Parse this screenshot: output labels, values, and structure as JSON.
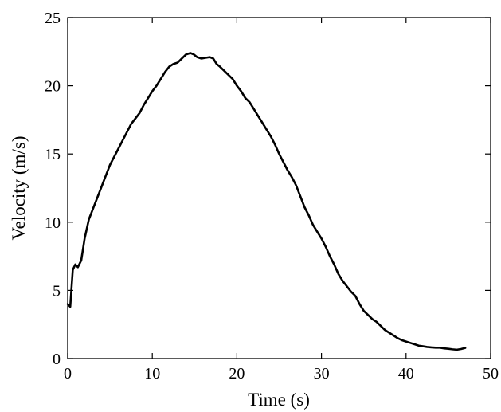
{
  "chart_data": {
    "type": "line",
    "title": "",
    "xlabel": "Time (s)",
    "ylabel": "Velocity (m/s)",
    "xlim": [
      0,
      50
    ],
    "ylim": [
      0,
      25
    ],
    "xticks": [
      0,
      10,
      20,
      30,
      40,
      50
    ],
    "yticks": [
      0,
      5,
      10,
      15,
      20,
      25
    ],
    "xtick_labels": [
      "0",
      "10",
      "20",
      "30",
      "40",
      "50"
    ],
    "ytick_labels": [
      "0",
      "5",
      "10",
      "15",
      "20",
      "25"
    ],
    "grid": false,
    "legend": "none",
    "line_color": "#000000",
    "series": [
      {
        "x": [
          0,
          0.3,
          0.6,
          0.9,
          1.2,
          1.6,
          2.0,
          2.5,
          3.0,
          3.5,
          4.0,
          4.5,
          5.0,
          5.5,
          6.0,
          6.5,
          7.0,
          7.5,
          8.0,
          8.5,
          9.0,
          9.5,
          10.0,
          10.5,
          11.0,
          11.5,
          12.0,
          12.5,
          13.0,
          13.5,
          14.0,
          14.5,
          14.9,
          15.3,
          15.8,
          16.3,
          16.8,
          17.2,
          17.6,
          18.0,
          18.5,
          19.0,
          19.5,
          20.0,
          20.5,
          21.0,
          21.5,
          22.0,
          22.5,
          23.0,
          23.5,
          24.0,
          24.5,
          25.0,
          25.5,
          26.0,
          26.5,
          27.0,
          27.5,
          28.0,
          28.5,
          29.0,
          29.5,
          30.0,
          30.5,
          31.0,
          31.5,
          32.0,
          32.5,
          33.0,
          33.5,
          34.0,
          34.5,
          35.0,
          35.5,
          36.0,
          36.5,
          37.0,
          37.5,
          38.0,
          38.5,
          39.0,
          39.5,
          40.0,
          40.5,
          41.0,
          41.5,
          42.0,
          42.5,
          43.0,
          43.5,
          44.0,
          44.5,
          45.0,
          45.5,
          46.0,
          46.5,
          47.0
        ],
        "y": [
          4.0,
          3.8,
          6.5,
          6.9,
          6.7,
          7.2,
          8.8,
          10.2,
          11.0,
          11.8,
          12.6,
          13.4,
          14.2,
          14.8,
          15.4,
          16.0,
          16.6,
          17.2,
          17.6,
          18.0,
          18.6,
          19.1,
          19.6,
          20.0,
          20.5,
          21.0,
          21.4,
          21.6,
          21.7,
          22.0,
          22.3,
          22.4,
          22.3,
          22.1,
          22.0,
          22.05,
          22.1,
          22.0,
          21.6,
          21.4,
          21.1,
          20.8,
          20.5,
          20.0,
          19.6,
          19.1,
          18.8,
          18.3,
          17.8,
          17.3,
          16.8,
          16.3,
          15.7,
          15.0,
          14.4,
          13.8,
          13.3,
          12.7,
          11.9,
          11.1,
          10.5,
          9.8,
          9.3,
          8.8,
          8.2,
          7.5,
          6.9,
          6.2,
          5.7,
          5.3,
          4.9,
          4.6,
          4.0,
          3.5,
          3.2,
          2.9,
          2.7,
          2.4,
          2.1,
          1.9,
          1.7,
          1.5,
          1.35,
          1.25,
          1.15,
          1.05,
          0.95,
          0.9,
          0.85,
          0.82,
          0.8,
          0.8,
          0.75,
          0.72,
          0.68,
          0.65,
          0.7,
          0.78
        ]
      }
    ]
  }
}
